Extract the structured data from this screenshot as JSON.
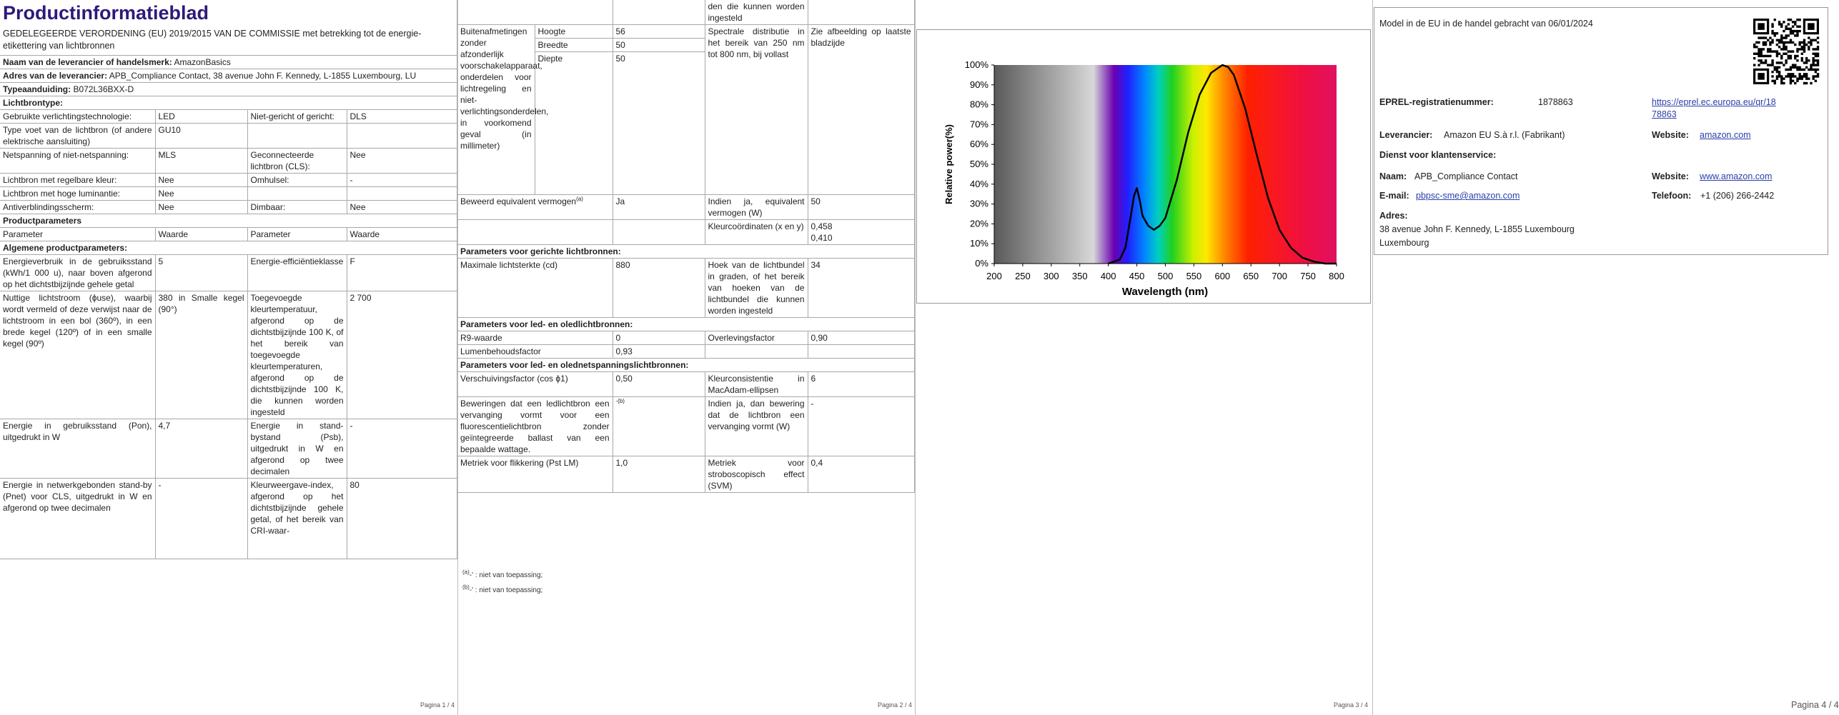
{
  "page1": {
    "title": "Productinformatieblad",
    "regulation": "GEDELEGEERDE VERORDENING (EU) 2019/2015 VAN DE COMMISSIE met betrekking tot de energie-etikettering van lichtbronnen",
    "supplier": {
      "label": "Naam van de leverancier of handelsmerk:",
      "value": "AmazonBasics"
    },
    "address": {
      "label": "Adres van de leverancier:",
      "value": "APB_Compliance Contact, 38 avenue John F. Kennedy, L-1855 Luxembourg, LU"
    },
    "model": {
      "label": "Typeaanduiding:",
      "value": "B072L36BXX-D"
    },
    "light_source_type": "Lichtbrontype:",
    "type_rows": [
      [
        "Gebruikte verlichtingstechnologie:",
        "LED",
        "Niet-gericht of gericht:",
        "DLS"
      ],
      [
        "Type voet van de lichtbron (of andere elektrische aansluiting)",
        "GU10"
      ],
      [
        "Netspanning of niet-netspanning:",
        "MLS",
        "Geconnecteerde lichtbron (CLS):",
        "Nee"
      ],
      [
        "Lichtbron met regelbare kleur:",
        "Nee",
        "Omhulsel:",
        "-"
      ],
      [
        "Lichtbron met hoge luminantie:",
        "Nee"
      ],
      [
        "Antiverblindingsscherm:",
        "Nee",
        "Dimbaar:",
        "Nee"
      ]
    ],
    "product_parameters": "Productparameters",
    "header": [
      "Parameter",
      "Waarde",
      "Parameter",
      "Waarde"
    ],
    "general": "Algemene productparameters:",
    "general_rows": [
      [
        "Energieverbruik in de gebruiksstand (kWh/1 000 u), naar boven afgerond op het dichtstbijzijnde gehele getal",
        "5",
        "Energie-efficiëntieklasse",
        "F"
      ],
      [
        "Nuttige lichtstroom (ϕuse), waarbij wordt vermeld of deze verwijst naar de lichtstroom in een bol (360º), in een brede kegel (120º) of in een smalle kegel (90º)",
        "380 in Smalle kegel (90°)",
        "Toegevoegde kleurtemperatuur, afgerond op de dichtstbijzijnde 100 K, of het bereik van toegevoegde kleurtemperaturen, afgerond op de dichtstbijzijnde 100 K, die kunnen worden ingesteld",
        "2 700"
      ],
      [
        "Energie in gebruiksstand (Pon), uitgedrukt in W",
        "4,7",
        "Energie in stand-bystand (Psb), uitgedrukt in W en afgerond op twee decimalen",
        "-"
      ],
      [
        "Energie in netwerkgebonden stand-by (Pnet) voor CLS, uitgedrukt in W en afgerond op twee decimalen",
        "-",
        "Kleurweergave-index, afgerond op het dichtstbijzijnde gehele getal, of het bereik van CRI-waar-",
        "80"
      ]
    ],
    "page_number": "Pagina 1 / 4"
  },
  "page2": {
    "continued": "den die kunnen worden ingesteld",
    "dimensions": {
      "label": "Buitenafmetingen zonder afzonderlijk voorschakelapparaat, onderdelen voor lichtregeling en niet-verlichtingsonderdelen, in voorkomend geval (in millimeter)",
      "rows": [
        [
          "Hoogte",
          "56"
        ],
        [
          "Breedte",
          "50"
        ],
        [
          "Diepte",
          "50"
        ]
      ],
      "spectral_label": "Spectrale distributie in het bereik van 250 nm tot 800 nm, bij vollast",
      "spectral_value": "Zie afbeelding op laatste bladzijde"
    },
    "equivalent": {
      "label": "Beweerd equivalent vermogen",
      "note": "(a)",
      "value": "Ja",
      "label2": "Indien ja, equivalent vermogen (W)",
      "value2": "50"
    },
    "chromaticity": {
      "label": "Kleurcoördinaten (x en y)",
      "x": "0,458",
      "y": "0,410"
    },
    "directional": {
      "title": "Parameters voor gerichte lichtbronnen:",
      "rows": [
        [
          "Maximale lichtsterkte (cd)",
          "880",
          "Hoek van de lichtbundel in graden, of het bereik van hoeken van de lichtbundel die kunnen worden ingesteld",
          "34"
        ]
      ]
    },
    "led": {
      "title": "Parameters voor led- en oledlichtbronnen:",
      "rows": [
        [
          "R9-waarde",
          "0",
          "Overlevingsfactor",
          "0,90"
        ],
        [
          "Lumenbehoudsfactor",
          "0,93"
        ]
      ]
    },
    "mains": {
      "title": "Parameters voor led- en olednetspanningslichtbronnen:",
      "rows": [
        [
          "Verschuivingsfactor (cos ϕ1)",
          "0,50",
          "Kleurconsistentie in MacAdam-ellipsen",
          "6"
        ],
        [
          "Beweringen dat een ledlichtbron een vervanging vormt voor een fluorescentielichtbron zonder geïntegreerde ballast van een bepaalde wattage.",
          "-",
          "Indien ja, dan bewering dat de lichtbron een vervanging vormt (W)",
          "-"
        ],
        [
          "Metriek voor flikkering (Pst LM)",
          "1,0",
          "Metriek voor stroboscopisch effect (SVM)",
          "0,4"
        ]
      ],
      "claim_note": "(b)"
    },
    "footnotes": [
      {
        "mark": "(a)",
        "text": "-' : niet van toepassing;"
      },
      {
        "mark": "(b)",
        "text": "-' : niet van toepassing;"
      }
    ],
    "page_number": "Pagina 2 / 4"
  },
  "chart_data": {
    "type": "line",
    "x_label": "Wavelength (nm)",
    "y_label": "Relative power(%)",
    "x": [
      400,
      420,
      430,
      440,
      445,
      450,
      455,
      460,
      470,
      480,
      490,
      500,
      520,
      540,
      560,
      580,
      600,
      610,
      620,
      640,
      660,
      680,
      700,
      720,
      740,
      760,
      780,
      800
    ],
    "values": [
      0,
      2,
      8,
      25,
      34,
      38,
      32,
      24,
      19,
      17,
      19,
      23,
      42,
      66,
      85,
      96,
      100,
      99,
      95,
      78,
      55,
      33,
      17,
      8,
      3,
      1,
      0,
      0
    ],
    "color": "#000000",
    "xlim": [
      200,
      800
    ],
    "ylim": [
      0,
      100
    ],
    "xticks": [
      200,
      250,
      300,
      350,
      400,
      450,
      500,
      550,
      600,
      650,
      700,
      750,
      800
    ],
    "yticks": [
      {
        "value": 0,
        "label": "0%"
      },
      {
        "value": 10,
        "label": "10%"
      },
      {
        "value": 20,
        "label": "20%"
      },
      {
        "value": 30,
        "label": "30%"
      },
      {
        "value": 40,
        "label": "40%"
      },
      {
        "value": 50,
        "label": "50%"
      },
      {
        "value": 60,
        "label": "60%"
      },
      {
        "value": 70,
        "label": "70%"
      },
      {
        "value": 80,
        "label": "80%"
      },
      {
        "value": 90,
        "label": "90%"
      },
      {
        "value": 100,
        "label": "100%"
      }
    ]
  },
  "page3": {
    "page_number": "Pagina 3 / 4"
  },
  "page4": {
    "placed_on_market": "Model in de EU in de handel gebracht van 06/01/2024",
    "eprel": {
      "label": "EPREL-registratienummer:",
      "value": "1878863",
      "link_line1": "https://eprel.ec.europa.eu/qr/18",
      "link_line2": "78863"
    },
    "supplier": {
      "label": "Leverancier:",
      "value": "Amazon EU S.à r.l. (Fabrikant)",
      "website_label": "Website:",
      "website": "amazon.com"
    },
    "customer_service": "Dienst voor klantenservice:",
    "name": {
      "label": "Naam:",
      "value": "APB_Compliance Contact",
      "website_label": "Website:",
      "website": "www.amazon.com"
    },
    "email": {
      "label": "E-mail:",
      "value": "pbpsc-sme@amazon.com",
      "phone_label": "Telefoon:",
      "phone": "+1 (206) 266-2442"
    },
    "address": {
      "label": "Adres:",
      "line1": "38 avenue John F. Kennedy, L-1855 Luxembourg",
      "line2": "Luxembourg"
    },
    "page_number": "Pagina 4 / 4"
  }
}
